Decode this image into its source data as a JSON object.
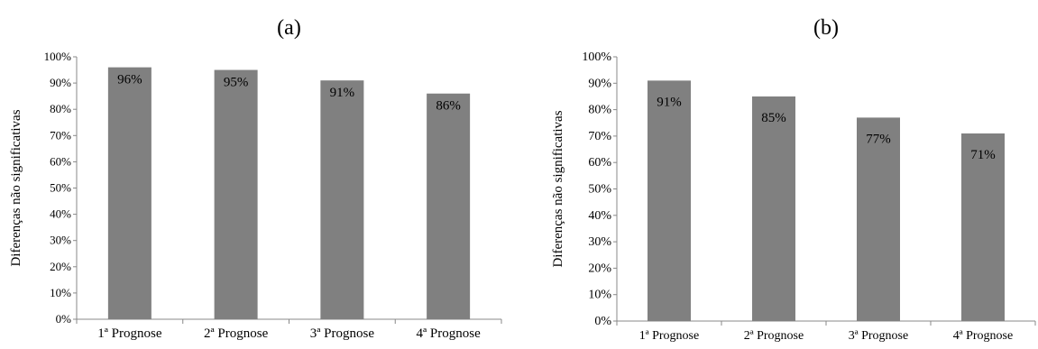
{
  "chart_data": [
    {
      "type": "bar",
      "title": "(a)",
      "ylabel": "Diferenças não significativas",
      "xlabel": "",
      "categories": [
        "1ª Prognose",
        "2ª Prognose",
        "3ª Prognose",
        "4ª Prognose"
      ],
      "values": [
        96,
        95,
        91,
        86
      ],
      "data_labels": [
        "96%",
        "95%",
        "91%",
        "86%"
      ],
      "yticks": [
        "0%",
        "10%",
        "20%",
        "30%",
        "40%",
        "50%",
        "60%",
        "70%",
        "80%",
        "90%",
        "100%"
      ],
      "ylim": [
        0,
        100
      ],
      "grid": false,
      "bar_color": "#808080"
    },
    {
      "type": "bar",
      "title": "(b)",
      "ylabel": "Diferenças não significativas",
      "xlabel": "",
      "categories": [
        "1ª Prognose",
        "2ª Prognose",
        "3ª Prognose",
        "4ª Prognose"
      ],
      "values": [
        91,
        85,
        77,
        71
      ],
      "data_labels": [
        "91%",
        "85%",
        "77%",
        "71%"
      ],
      "yticks": [
        "0%",
        "10%",
        "20%",
        "30%",
        "40%",
        "50%",
        "60%",
        "70%",
        "80%",
        "90%",
        "100%"
      ],
      "ylim": [
        0,
        100
      ],
      "grid": false,
      "bar_color": "#808080"
    }
  ]
}
